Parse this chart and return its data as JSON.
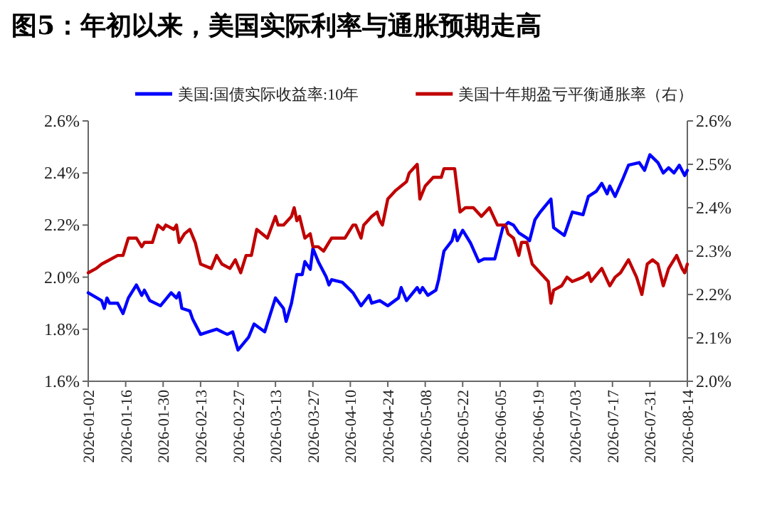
{
  "chart_data": {
    "type": "line",
    "title": "图5：年初以来，美国实际利率与通胀预期走高",
    "legend": "top",
    "grid": false,
    "xlim": [
      "2026-01-02",
      "2026-08-14"
    ],
    "xticks": [
      "2026-01-02",
      "2026-01-16",
      "2026-01-30",
      "2026-02-13",
      "2026-02-27",
      "2026-03-13",
      "2026-03-27",
      "2026-04-10",
      "2026-04-24",
      "2026-05-08",
      "2026-05-22",
      "2026-06-05",
      "2026-06-19",
      "2026-07-03",
      "2026-07-17",
      "2026-07-31",
      "2026-08-14"
    ],
    "ylim": [
      1.6,
      2.6
    ],
    "yticks": [
      {
        "value": 1.6,
        "label": "1.6%"
      },
      {
        "value": 1.8,
        "label": "1.8%"
      },
      {
        "value": 2.0,
        "label": "2.0%"
      },
      {
        "value": 2.2,
        "label": "2.2%"
      },
      {
        "value": 2.4,
        "label": "2.4%"
      },
      {
        "value": 2.6,
        "label": "2.6%"
      }
    ],
    "y2lim": [
      2.0,
      2.6
    ],
    "y2ticks": [
      {
        "value": 2.0,
        "label": "2.0%"
      },
      {
        "value": 2.1,
        "label": "2.1%"
      },
      {
        "value": 2.2,
        "label": "2.2%"
      },
      {
        "value": 2.3,
        "label": "2.3%"
      },
      {
        "value": 2.4,
        "label": "2.4%"
      },
      {
        "value": 2.5,
        "label": "2.5%"
      },
      {
        "value": 2.6,
        "label": "2.6%"
      }
    ],
    "series": [
      {
        "name": "美国:国债实际收益率:10年",
        "color": "#0000ff",
        "x": [
          "2026-01-02",
          "2026-01-07",
          "2026-01-08",
          "2026-01-09",
          "2026-01-10",
          "2026-01-13",
          "2026-01-15",
          "2026-01-17",
          "2026-01-20",
          "2026-01-22",
          "2026-01-23",
          "2026-01-25",
          "2026-01-29",
          "2026-02-02",
          "2026-02-04",
          "2026-02-05",
          "2026-02-06",
          "2026-02-09",
          "2026-02-10",
          "2026-02-13",
          "2026-02-16",
          "2026-02-19",
          "2026-02-21",
          "2026-02-23",
          "2026-02-25",
          "2026-02-27",
          "2026-03-03",
          "2026-03-05",
          "2026-03-09",
          "2026-03-13",
          "2026-03-16",
          "2026-03-17",
          "2026-03-19",
          "2026-03-21",
          "2026-03-23",
          "2026-03-24",
          "2026-03-26",
          "2026-03-27",
          "2026-03-29",
          "2026-04-01",
          "2026-04-02",
          "2026-04-03",
          "2026-04-07",
          "2026-04-10",
          "2026-04-11",
          "2026-04-14",
          "2026-04-17",
          "2026-04-18",
          "2026-04-21",
          "2026-04-24",
          "2026-04-28",
          "2026-04-29",
          "2026-05-01",
          "2026-05-05",
          "2026-05-06",
          "2026-05-07",
          "2026-05-09",
          "2026-05-12",
          "2026-05-13",
          "2026-05-15",
          "2026-05-18",
          "2026-05-19",
          "2026-05-20",
          "2026-05-22",
          "2026-05-25",
          "2026-05-28",
          "2026-05-30",
          "2026-06-03",
          "2026-06-04",
          "2026-06-06",
          "2026-06-08",
          "2026-06-10",
          "2026-06-12",
          "2026-06-15",
          "2026-06-16",
          "2026-06-18",
          "2026-06-20",
          "2026-06-24",
          "2026-06-25",
          "2026-06-29",
          "2026-07-02",
          "2026-07-06",
          "2026-07-08",
          "2026-07-11",
          "2026-07-13",
          "2026-07-15",
          "2026-07-16",
          "2026-07-18",
          "2026-07-21",
          "2026-07-23",
          "2026-07-27",
          "2026-07-29",
          "2026-07-31",
          "2026-08-03",
          "2026-08-05",
          "2026-08-07",
          "2026-08-09",
          "2026-08-11",
          "2026-08-13",
          "2026-08-14"
        ],
        "values": [
          1.94,
          1.91,
          1.88,
          1.92,
          1.9,
          1.9,
          1.86,
          1.92,
          1.97,
          1.93,
          1.95,
          1.91,
          1.89,
          1.94,
          1.92,
          1.94,
          1.88,
          1.87,
          1.84,
          1.78,
          1.79,
          1.8,
          1.79,
          1.78,
          1.79,
          1.72,
          1.77,
          1.82,
          1.79,
          1.92,
          1.88,
          1.83,
          1.9,
          2.01,
          2.01,
          2.06,
          2.03,
          2.11,
          2.06,
          2.0,
          1.97,
          1.99,
          1.98,
          1.95,
          1.94,
          1.89,
          1.93,
          1.9,
          1.91,
          1.89,
          1.92,
          1.96,
          1.91,
          1.96,
          1.94,
          1.96,
          1.93,
          1.95,
          1.99,
          2.1,
          2.14,
          2.18,
          2.14,
          2.18,
          2.13,
          2.06,
          2.07,
          2.07,
          2.11,
          2.19,
          2.21,
          2.2,
          2.17,
          2.15,
          2.14,
          2.22,
          2.25,
          2.3,
          2.19,
          2.16,
          2.25,
          2.24,
          2.31,
          2.33,
          2.36,
          2.32,
          2.35,
          2.31,
          2.38,
          2.43,
          2.44,
          2.41,
          2.47,
          2.44,
          2.4,
          2.42,
          2.4,
          2.43,
          2.39,
          2.41
        ]
      },
      {
        "name": "美国十年期盈亏平衡通胀率（右）",
        "color": "#c00000",
        "axis": "y2",
        "x": [
          "2026-01-02",
          "2026-01-05",
          "2026-01-07",
          "2026-01-10",
          "2026-01-13",
          "2026-01-15",
          "2026-01-17",
          "2026-01-20",
          "2026-01-22",
          "2026-01-23",
          "2026-01-26",
          "2026-01-28",
          "2026-01-30",
          "2026-01-31",
          "2026-02-03",
          "2026-02-04",
          "2026-02-05",
          "2026-02-07",
          "2026-02-09",
          "2026-02-11",
          "2026-02-13",
          "2026-02-17",
          "2026-02-19",
          "2026-02-21",
          "2026-02-24",
          "2026-02-26",
          "2026-02-28",
          "2026-03-02",
          "2026-03-04",
          "2026-03-06",
          "2026-03-10",
          "2026-03-13",
          "2026-03-14",
          "2026-03-16",
          "2026-03-19",
          "2026-03-20",
          "2026-03-21",
          "2026-03-22",
          "2026-03-24",
          "2026-03-26",
          "2026-03-27",
          "2026-03-29",
          "2026-03-31",
          "2026-04-03",
          "2026-04-06",
          "2026-04-08",
          "2026-04-11",
          "2026-04-12",
          "2026-04-14",
          "2026-04-15",
          "2026-04-18",
          "2026-04-20",
          "2026-04-21",
          "2026-04-22",
          "2026-04-24",
          "2026-04-27",
          "2026-04-29",
          "2026-05-01",
          "2026-05-02",
          "2026-05-05",
          "2026-05-06",
          "2026-05-08",
          "2026-05-11",
          "2026-05-14",
          "2026-05-15",
          "2026-05-17",
          "2026-05-19",
          "2026-05-21",
          "2026-05-23",
          "2026-05-26",
          "2026-05-29",
          "2026-06-01",
          "2026-06-04",
          "2026-06-07",
          "2026-06-08",
          "2026-06-10",
          "2026-06-12",
          "2026-06-13",
          "2026-06-15",
          "2026-06-17",
          "2026-06-20",
          "2026-06-23",
          "2026-06-24",
          "2026-06-25",
          "2026-06-28",
          "2026-06-30",
          "2026-07-02",
          "2026-07-06",
          "2026-07-08",
          "2026-07-09",
          "2026-07-13",
          "2026-07-16",
          "2026-07-18",
          "2026-07-20",
          "2026-07-23",
          "2026-07-26",
          "2026-07-28",
          "2026-07-30",
          "2026-08-01",
          "2026-08-03",
          "2026-08-05",
          "2026-08-07",
          "2026-08-10",
          "2026-08-12",
          "2026-08-13",
          "2026-08-14"
        ],
        "values": [
          2.25,
          2.26,
          2.27,
          2.28,
          2.29,
          2.29,
          2.33,
          2.33,
          2.31,
          2.32,
          2.32,
          2.36,
          2.35,
          2.36,
          2.35,
          2.36,
          2.32,
          2.34,
          2.35,
          2.32,
          2.27,
          2.26,
          2.29,
          2.27,
          2.26,
          2.28,
          2.25,
          2.29,
          2.29,
          2.35,
          2.33,
          2.38,
          2.36,
          2.36,
          2.38,
          2.4,
          2.37,
          2.38,
          2.33,
          2.34,
          2.31,
          2.31,
          2.3,
          2.33,
          2.33,
          2.33,
          2.36,
          2.36,
          2.33,
          2.36,
          2.38,
          2.39,
          2.37,
          2.36,
          2.42,
          2.44,
          2.45,
          2.46,
          2.48,
          2.5,
          2.42,
          2.45,
          2.47,
          2.47,
          2.49,
          2.49,
          2.49,
          2.39,
          2.4,
          2.4,
          2.38,
          2.4,
          2.36,
          2.36,
          2.34,
          2.33,
          2.29,
          2.32,
          2.32,
          2.27,
          2.25,
          2.23,
          2.18,
          2.21,
          2.22,
          2.24,
          2.23,
          2.24,
          2.25,
          2.23,
          2.26,
          2.22,
          2.24,
          2.25,
          2.28,
          2.24,
          2.2,
          2.27,
          2.28,
          2.27,
          2.22,
          2.26,
          2.29,
          2.26,
          2.25,
          2.27
        ]
      }
    ]
  }
}
